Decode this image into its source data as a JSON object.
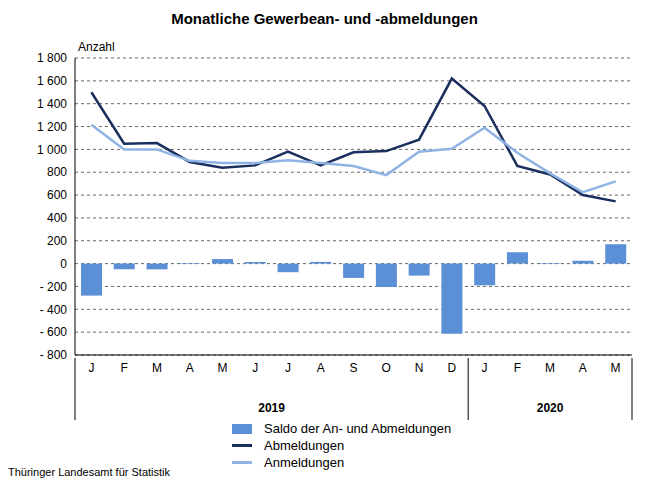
{
  "chart_data": {
    "type": "combo",
    "title": "Monatliche Gewerbean- und -abmeldungen",
    "y_label": "Anzahl",
    "source": "Thüringer Landesamt für Statistik",
    "categories": [
      "J",
      "F",
      "M",
      "A",
      "M",
      "J",
      "J",
      "A",
      "S",
      "O",
      "N",
      "D",
      "J",
      "F",
      "M",
      "A",
      "M"
    ],
    "x_groups": [
      {
        "label": "2019",
        "start": 0,
        "end": 11
      },
      {
        "label": "2020",
        "start": 12,
        "end": 16
      }
    ],
    "series": [
      {
        "name": "Saldo der An- und Abmeldungen",
        "type": "bar",
        "color": "#5b8fd6",
        "values": [
          -280,
          -50,
          -50,
          5,
          40,
          15,
          -75,
          15,
          -125,
          -205,
          -105,
          -615,
          -190,
          100,
          5,
          25,
          170
        ]
      },
      {
        "name": "Abmeldungen",
        "type": "line",
        "color": "#1b2f5e",
        "values": [
          1500,
          1050,
          1055,
          890,
          840,
          860,
          980,
          860,
          975,
          985,
          1085,
          1620,
          1380,
          855,
          780,
          600,
          545
        ]
      },
      {
        "name": "Anmeldungen",
        "type": "line",
        "color": "#8fb4e3",
        "values": [
          1215,
          1000,
          1000,
          900,
          880,
          880,
          905,
          880,
          855,
          775,
          980,
          1005,
          1190,
          970,
          790,
          625,
          720
        ]
      }
    ],
    "ylim": [
      -800,
      1800
    ],
    "yticks": [
      {
        "value": -800,
        "label": "- 800"
      },
      {
        "value": -600,
        "label": "- 600"
      },
      {
        "value": -400,
        "label": "- 400"
      },
      {
        "value": -200,
        "label": "- 200"
      },
      0,
      200,
      400,
      600,
      800,
      {
        "value": 1000,
        "label": "1 000"
      },
      {
        "value": 1200,
        "label": "1 200"
      },
      {
        "value": 1400,
        "label": "1 400"
      },
      {
        "value": 1600,
        "label": "1 600"
      },
      {
        "value": 1800,
        "label": "1 800"
      }
    ],
    "grid": true
  }
}
